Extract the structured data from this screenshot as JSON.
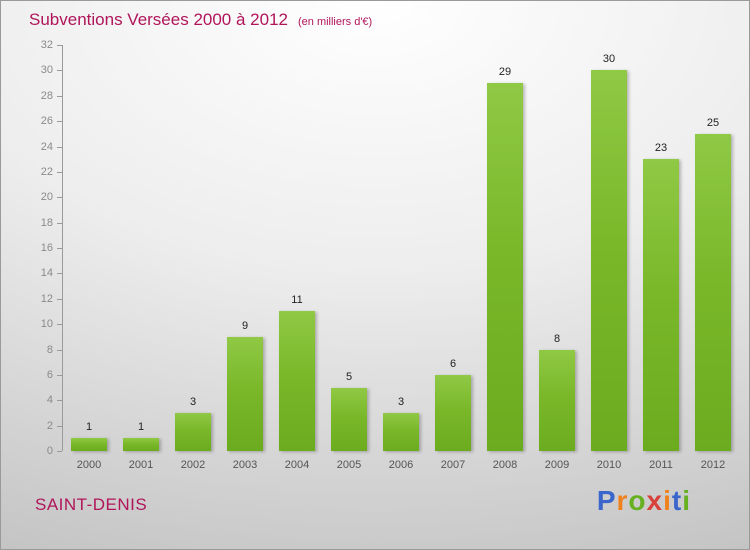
{
  "header": {
    "title": "Subventions Versées 2000 à 2012",
    "subtitle": "(en milliers d'€)"
  },
  "footer": {
    "city": "SAINT-DENIS",
    "brand": {
      "name": "Proxiti",
      "letters": [
        {
          "char": "P",
          "color": "#3a66cc"
        },
        {
          "char": "r",
          "color": "#f0821e"
        },
        {
          "char": "o",
          "color": "#67b021"
        },
        {
          "char": "x",
          "color": "#d8403a"
        },
        {
          "char": "i",
          "color": "#f0821e"
        },
        {
          "char": "t",
          "color": "#3a66cc"
        },
        {
          "char": "i",
          "color": "#67b021"
        }
      ]
    }
  },
  "chart_data": {
    "type": "bar",
    "title": "Subventions Versées 2000 à 2012",
    "subtitle": "(en milliers d'€)",
    "categories": [
      "2000",
      "2001",
      "2002",
      "2003",
      "2004",
      "2005",
      "2006",
      "2007",
      "2008",
      "2009",
      "2010",
      "2011",
      "2012"
    ],
    "values": [
      1,
      1,
      3,
      9,
      11,
      5,
      3,
      6,
      29,
      8,
      30,
      23,
      25
    ],
    "xlabel": "",
    "ylabel": "",
    "ylim": [
      0,
      32
    ],
    "ytick_step": 2,
    "grid": false,
    "legend": "none",
    "bar_color": "#7ab82a",
    "title_color": "#b0155a",
    "value_labels": true
  }
}
